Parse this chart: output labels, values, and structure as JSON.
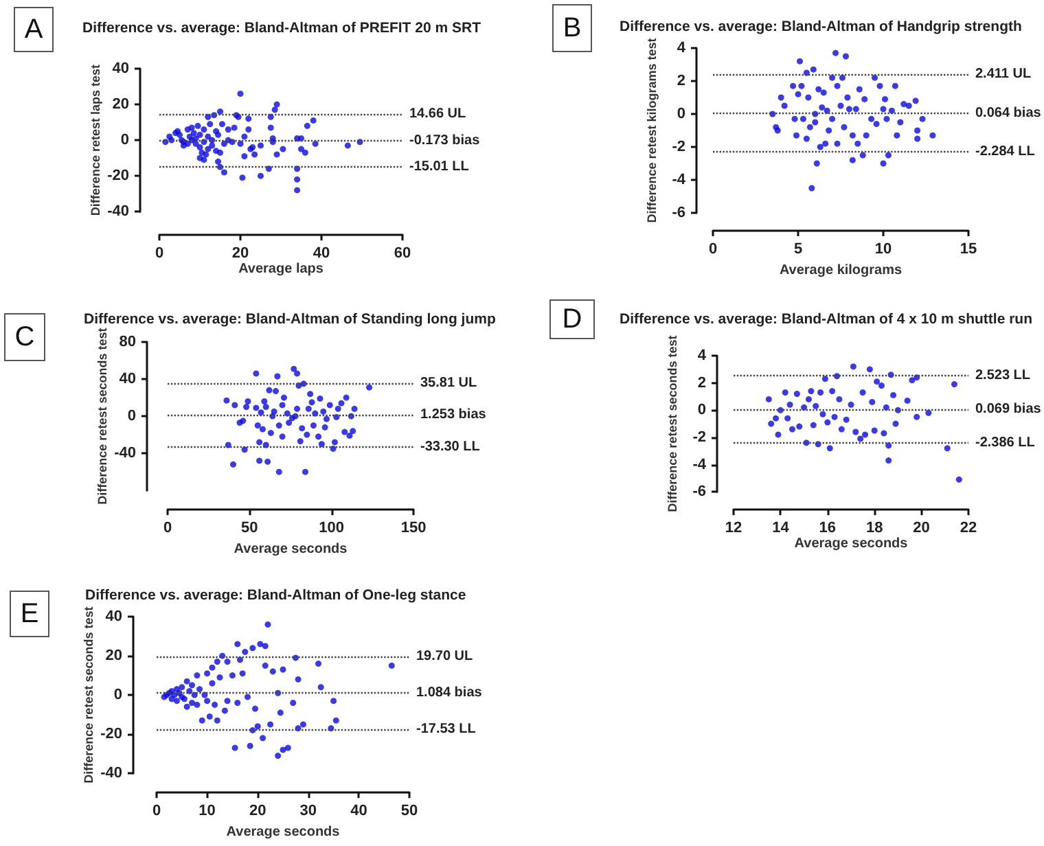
{
  "chart_data": [
    {
      "type": "scatter",
      "title": "Difference vs. average: Bland-Altman of PREFIT 20 m SRT",
      "annotations": [
        "A"
      ],
      "xlabel": "Average laps",
      "ylabel": "Difference retest laps test",
      "color": "#0a0ae0",
      "marker": "circle",
      "xlim": [
        0,
        60
      ],
      "xticks": [
        0,
        20,
        40,
        60
      ],
      "ylim": [
        -40,
        40
      ],
      "yticks": [
        -40,
        -20,
        0,
        20,
        40
      ],
      "ref_lines": [
        {
          "axis": "y",
          "value": 14.66,
          "label": "14.66 UL",
          "line_style": "dotted"
        },
        {
          "axis": "y",
          "value": -0.173,
          "label": "-0.173 bias",
          "line_style": "dotted"
        },
        {
          "axis": "y",
          "value": -15.01,
          "label": "-15.01 LL",
          "line_style": "dotted"
        }
      ],
      "x": [
        1.5,
        2.5,
        3,
        4,
        4.5,
        5,
        5.5,
        6,
        6,
        7,
        7,
        7.5,
        8,
        8,
        8.5,
        9,
        9,
        9.5,
        10,
        10,
        10,
        10.5,
        11,
        11,
        11,
        11.5,
        12,
        12,
        12,
        12.5,
        13,
        13,
        13.5,
        14,
        14,
        14.5,
        14.5,
        15,
        15,
        15,
        15.5,
        16,
        16,
        17,
        17,
        18,
        18.5,
        19,
        19.5,
        20,
        20,
        20.5,
        21,
        21,
        22,
        22,
        22.5,
        23,
        23.5,
        25,
        25,
        27,
        27.5,
        27.5,
        28,
        28,
        28.5,
        29,
        29,
        30.5,
        34,
        34,
        34,
        34,
        35,
        35,
        36,
        36.5,
        38,
        38.5,
        46.5,
        49.5
      ],
      "values": [
        -1,
        2,
        0,
        4,
        5,
        3,
        0,
        -1,
        -3,
        6,
        -2,
        2,
        7,
        0,
        4,
        -2,
        1,
        8,
        -10,
        3,
        -4,
        -7,
        -1,
        6,
        -11,
        -8,
        13,
        2,
        -5,
        9,
        0,
        -3,
        14,
        -6,
        5,
        -12,
        3,
        16,
        -15,
        -7,
        9,
        -18,
        -2,
        0,
        6,
        -1,
        7,
        14,
        13,
        26,
        -2,
        -21,
        -9,
        2,
        12,
        6,
        -5,
        -4,
        -8,
        -20,
        -3,
        -16,
        13,
        7,
        -1,
        1,
        17,
        20,
        -8,
        -5,
        1,
        -16,
        -22,
        -28,
        -5,
        1,
        -7,
        8,
        11,
        -2,
        -3,
        -1
      ]
    },
    {
      "type": "scatter",
      "title": "Difference vs. average: Bland-Altman of Handgrip strength",
      "annotations": [
        "B"
      ],
      "xlabel": "Average kilograms",
      "ylabel": "Difference retest kilograms test",
      "color": "#0a0ae0",
      "marker": "circle",
      "xlim": [
        0,
        15
      ],
      "xticks": [
        0,
        5,
        10,
        15
      ],
      "ylim": [
        -6,
        4
      ],
      "yticks": [
        -6,
        -4,
        -2,
        0,
        2,
        4
      ],
      "ref_lines": [
        {
          "axis": "y",
          "value": 2.411,
          "label": "2.411 UL",
          "line_style": "dotted"
        },
        {
          "axis": "y",
          "value": 0.064,
          "label": "0.064 bias",
          "line_style": "dotted"
        },
        {
          "axis": "y",
          "value": -2.284,
          "label": "-2.284 LL",
          "line_style": "dotted"
        }
      ],
      "x": [
        3.5,
        3.7,
        3.8,
        4,
        4.2,
        4.7,
        4.8,
        4.9,
        5,
        5.1,
        5.2,
        5.3,
        5.5,
        5.5,
        5.6,
        5.7,
        5.8,
        5.9,
        6,
        6,
        6.1,
        6.2,
        6.3,
        6.4,
        6.5,
        6.6,
        6.7,
        6.8,
        7,
        7,
        7.2,
        7.3,
        7.3,
        7.5,
        7.6,
        7.7,
        7.8,
        7.9,
        8,
        8.2,
        8.2,
        8.4,
        8.5,
        8.6,
        8.8,
        8.9,
        9,
        9.3,
        9.5,
        9.6,
        9.8,
        10,
        10,
        10.1,
        10.2,
        10.3,
        10.5,
        10.7,
        10.8,
        11,
        11.2,
        11.5,
        11.9,
        12,
        12,
        12.3,
        12.9
      ],
      "values": [
        0,
        -0.8,
        -1,
        1,
        0.5,
        1.7,
        -0.3,
        -1.3,
        1.2,
        3.2,
        1.7,
        -0.3,
        -1.5,
        2.5,
        1,
        -0.8,
        -4.5,
        2.7,
        0,
        -0.5,
        -3,
        1.5,
        -2,
        0.4,
        1.3,
        -1.8,
        0.2,
        -1,
        2.2,
        -0.3,
        3.7,
        1.7,
        -1.8,
        0.5,
        2.2,
        -0.8,
        3.5,
        1,
        0.3,
        -1.3,
        -2.8,
        0.3,
        -1.8,
        1.5,
        -2.5,
        0.9,
        -1.3,
        -0.3,
        2.2,
        -0.6,
        1.7,
        -3,
        0.3,
        0.9,
        -0.3,
        -2.5,
        0.2,
        1.7,
        -1.3,
        -0.5,
        0.6,
        0.5,
        0.8,
        -1,
        -1.5,
        -0.3,
        -1.3
      ]
    },
    {
      "type": "scatter",
      "title": "Difference vs. average: Bland-Altman of Standing long jump",
      "annotations": [
        "C"
      ],
      "xlabel": "Average seconds",
      "ylabel": "Difference retest seconds test",
      "color": "#0a0ae0",
      "marker": "circle",
      "xlim": [
        0,
        150
      ],
      "xticks": [
        0,
        50,
        100,
        150
      ],
      "ylim": [
        -80,
        80
      ],
      "yticks": [
        -40,
        0,
        40,
        80
      ],
      "ref_lines": [
        {
          "axis": "y",
          "value": 35.81,
          "label": "35.81 UL",
          "line_style": "dotted"
        },
        {
          "axis": "y",
          "value": 1.253,
          "label": "1.253 bias",
          "line_style": "dotted"
        },
        {
          "axis": "y",
          "value": -33.3,
          "label": "-33.30 LL",
          "line_style": "dotted"
        }
      ],
      "x": [
        36,
        37,
        40,
        41,
        44,
        46,
        47,
        48,
        49,
        54,
        54,
        55,
        56,
        56,
        57,
        58,
        59,
        60,
        60,
        61,
        62,
        63,
        64,
        65,
        66,
        67,
        68,
        68,
        70,
        70,
        71,
        73,
        74,
        76,
        77,
        78,
        79,
        79,
        80,
        81,
        82,
        83,
        84,
        85,
        86,
        87,
        88,
        89,
        90,
        92,
        93,
        94,
        95,
        96,
        97,
        99,
        101,
        102,
        103,
        104,
        106,
        108,
        109,
        111,
        112,
        113,
        114,
        123
      ],
      "values": [
        17,
        -31,
        -52,
        12,
        -7,
        -5,
        -36,
        10,
        16,
        46,
        9,
        -10,
        -28,
        -48,
        4,
        -14,
        16,
        -31,
        10,
        -49,
        28,
        -18,
        0,
        5,
        27,
        43,
        -60,
        -10,
        12,
        -22,
        20,
        3,
        -7,
        -2,
        51,
        0,
        46,
        8,
        33,
        -27,
        -13,
        35,
        -60,
        -20,
        8,
        24,
        15,
        -10,
        3,
        -22,
        19,
        -30,
        5,
        -12,
        -3,
        12,
        -35,
        -28,
        -1,
        8,
        14,
        -17,
        20,
        -21,
        0,
        -16,
        8,
        31
      ]
    },
    {
      "type": "scatter",
      "title": "Difference vs. average: Bland-Altman of 4 x 10 m shuttle run",
      "annotations": [
        "D"
      ],
      "xlabel": "Average seconds",
      "ylabel": "Difference retest seconds test",
      "color": "#0a0ae0",
      "marker": "circle",
      "xlim": [
        12,
        22
      ],
      "xticks": [
        12,
        14,
        16,
        18,
        20,
        22
      ],
      "ylim": [
        -6,
        4
      ],
      "yticks": [
        -6,
        -4,
        -2,
        0,
        2,
        4
      ],
      "ref_lines": [
        {
          "axis": "y",
          "value": 2.523,
          "label": "2.523 LL",
          "line_style": "dotted"
        },
        {
          "axis": "y",
          "value": 0.069,
          "label": "0.069 bias",
          "line_style": "dotted"
        },
        {
          "axis": "y",
          "value": -2.386,
          "label": "-2.386 LL",
          "line_style": "dotted"
        }
      ],
      "x": [
        13.5,
        13.6,
        13.8,
        13.9,
        14,
        14.2,
        14.3,
        14.4,
        14.5,
        14.7,
        14.8,
        15,
        15.1,
        15.2,
        15.3,
        15.4,
        15.5,
        15.6,
        15.7,
        15.8,
        15.9,
        16,
        16.1,
        16.2,
        16.3,
        16.4,
        16.5,
        16.6,
        16.8,
        17,
        17.1,
        17.2,
        17.4,
        17.5,
        17.6,
        17.8,
        17.9,
        18,
        18.1,
        18.3,
        18.4,
        18.5,
        18.6,
        18.6,
        18.7,
        18.8,
        18.9,
        19,
        19.4,
        19.6,
        19.8,
        19.8,
        20.3,
        21.1,
        21.4,
        21.6
      ],
      "values": [
        0.8,
        -1,
        -0.6,
        -1.8,
        0,
        1.3,
        -0.6,
        0.4,
        -1.4,
        1.2,
        -1.2,
        0.2,
        -2.4,
        0.8,
        1.4,
        -1.1,
        0.3,
        -2.5,
        1.3,
        -0.3,
        2.3,
        -0.9,
        -2.8,
        1.4,
        -0.5,
        2.5,
        0.8,
        -1.4,
        -0.7,
        0.4,
        3.2,
        -1.6,
        -2.1,
        1.3,
        -1.8,
        3,
        0.6,
        -1.5,
        2.1,
        1.8,
        -1.7,
        0.2,
        -2.6,
        -3.7,
        2.6,
        1.1,
        -1,
        0,
        0.7,
        2.2,
        2.4,
        -0.5,
        -0.2,
        -2.8,
        1.9,
        -5.1
      ]
    },
    {
      "type": "scatter",
      "title": "Difference vs. average: Bland-Altman of One-leg stance",
      "annotations": [
        "E"
      ],
      "xlabel": "Average seconds",
      "ylabel": "Difference retest seconds test",
      "color": "#0a0ae0",
      "marker": "circle",
      "xlim": [
        0,
        50
      ],
      "xticks": [
        0,
        10,
        20,
        30,
        40,
        50
      ],
      "ylim": [
        -40,
        40
      ],
      "yticks": [
        -40,
        -20,
        0,
        20,
        40
      ],
      "ref_lines": [
        {
          "axis": "y",
          "value": 19.7,
          "label": "19.70 UL",
          "line_style": "dotted"
        },
        {
          "axis": "y",
          "value": 1.084,
          "label": "1.084 bias",
          "line_style": "dotted"
        },
        {
          "axis": "y",
          "value": -17.53,
          "label": "-17.53 LL",
          "line_style": "dotted"
        }
      ],
      "x": [
        1.5,
        2,
        2.5,
        3,
        3,
        3.5,
        4,
        4,
        4.5,
        5,
        5,
        5.5,
        6,
        6,
        6.5,
        7,
        7,
        7.5,
        8,
        8,
        8.5,
        9,
        9.5,
        10,
        10,
        10.5,
        11,
        11,
        11.5,
        12,
        12,
        12.5,
        13,
        13.5,
        14,
        14,
        15,
        15.5,
        16,
        16,
        16.5,
        17,
        17.5,
        18,
        18.5,
        19,
        19,
        19.5,
        20,
        20.5,
        21,
        21.5,
        21.5,
        22,
        22.5,
        23,
        24,
        24,
        24.5,
        25,
        25,
        26,
        27,
        27.5,
        28,
        28,
        29,
        32,
        32.5,
        34.5,
        35,
        35.5,
        46.5
      ],
      "values": [
        -1,
        0,
        1,
        -2,
        2,
        0,
        3,
        -3,
        1,
        -1,
        4,
        -2,
        7,
        -6,
        2,
        -4,
        5,
        0,
        -5,
        10,
        3,
        -13,
        0,
        11,
        -3,
        -11,
        14,
        6,
        -5,
        17,
        -13,
        9,
        20,
        -8,
        17,
        -3,
        10,
        -27,
        26,
        -4,
        18,
        11,
        22,
        -1,
        -26,
        24,
        -18,
        -7,
        -16,
        26,
        -22,
        25,
        15,
        36,
        -15,
        12,
        1,
        -31,
        -9,
        13,
        -28,
        -27,
        -4,
        19,
        -17,
        8,
        -15,
        16,
        4,
        -17,
        -3,
        -13,
        15
      ]
    }
  ]
}
